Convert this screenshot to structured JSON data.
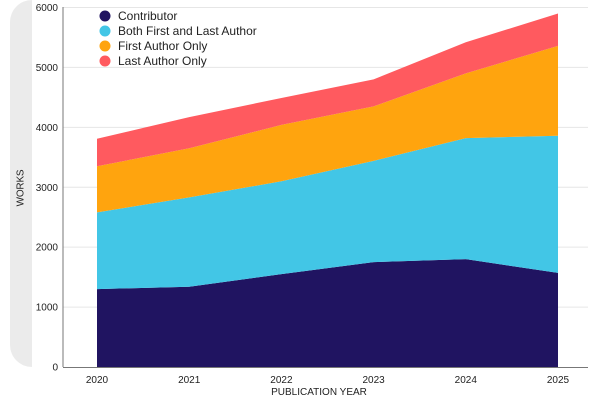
{
  "chart_data": {
    "type": "area",
    "stacked": true,
    "title": "",
    "xlabel": "PUBLICATION YEAR",
    "ylabel": "WORKS",
    "x": [
      "2020",
      "2021",
      "2022",
      "2023",
      "2024",
      "2025"
    ],
    "ylim": [
      0,
      6000
    ],
    "yticks": [
      0,
      1000,
      2000,
      3000,
      4000,
      5000,
      6000
    ],
    "grid": true,
    "legend_position": "top-left",
    "series": [
      {
        "name": "Contributor",
        "color": "#201461",
        "values": [
          1300,
          1340,
          1550,
          1750,
          1800,
          1570
        ]
      },
      {
        "name": "Both First and Last Author",
        "color": "#42C6E6",
        "values": [
          1280,
          1490,
          1550,
          1690,
          2020,
          2290
        ]
      },
      {
        "name": "First Author Only",
        "color": "#FFA40E",
        "values": [
          770,
          820,
          940,
          910,
          1080,
          1500
        ]
      },
      {
        "name": "Last Author Only",
        "color": "#FF5A5F",
        "values": [
          460,
          520,
          450,
          450,
          520,
          540
        ]
      }
    ]
  }
}
